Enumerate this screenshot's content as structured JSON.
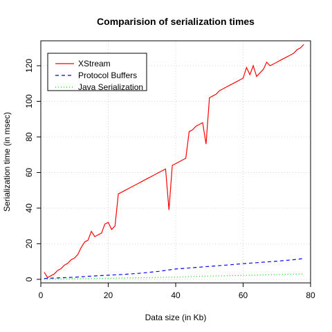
{
  "chart_data": {
    "type": "line",
    "title": "Comparision of serialization times",
    "xlabel": "Data size (in Kb)",
    "ylabel": "Serialization time (in msec)",
    "xlim": [
      0,
      80
    ],
    "ylim": [
      -2,
      134
    ],
    "xticks": [
      0,
      20,
      40,
      60,
      80
    ],
    "yticks": [
      0,
      20,
      40,
      60,
      80,
      100,
      120
    ],
    "grid": true,
    "legend_position": "top-left",
    "series": [
      {
        "name": "XStream",
        "color": "#ff0000",
        "dash": "solid",
        "x": [
          1,
          2,
          3,
          4,
          5,
          6,
          7,
          8,
          9,
          10,
          11,
          12,
          13,
          14,
          15,
          16,
          17,
          18,
          19,
          20,
          21,
          22,
          23,
          24,
          25,
          26,
          27,
          28,
          29,
          30,
          31,
          32,
          33,
          34,
          35,
          36,
          37,
          38,
          39,
          40,
          41,
          42,
          43,
          44,
          45,
          46,
          47,
          48,
          49,
          50,
          51,
          52,
          53,
          54,
          55,
          56,
          57,
          58,
          59,
          60,
          61,
          62,
          63,
          64,
          65,
          66,
          67,
          68,
          69,
          70,
          71,
          72,
          73,
          74,
          75,
          76,
          77,
          78
        ],
        "y": [
          4,
          1,
          2,
          3,
          5,
          6,
          8,
          9,
          11,
          12,
          14,
          18,
          21,
          22,
          27,
          24,
          25,
          26,
          31,
          32,
          28,
          30,
          48,
          49,
          50,
          51,
          52,
          53,
          54,
          55,
          56,
          57,
          58,
          59,
          60,
          61,
          62,
          39,
          64,
          65,
          66,
          67,
          68,
          83,
          84,
          86,
          87,
          88,
          76,
          102,
          103,
          104,
          106,
          107,
          108,
          109,
          110,
          111,
          112,
          113,
          119,
          115,
          120,
          114,
          116,
          118,
          122,
          120,
          121,
          122,
          123,
          124,
          125,
          126,
          127,
          129,
          130,
          132
        ]
      },
      {
        "name": "Protocol Buffers",
        "color": "#0000ff",
        "dash": "dashed",
        "x": [
          1,
          5,
          10,
          15,
          20,
          25,
          30,
          35,
          40,
          45,
          50,
          55,
          60,
          65,
          70,
          75,
          78
        ],
        "y": [
          0.5,
          0.8,
          1.2,
          1.8,
          2.3,
          2.8,
          3.5,
          4.5,
          5.8,
          6.5,
          7.3,
          8.0,
          8.8,
          9.5,
          10.2,
          11.0,
          11.7
        ]
      },
      {
        "name": "Java Serialization",
        "color": "#00dd00",
        "dash": "dotted",
        "x": [
          1,
          10,
          20,
          30,
          40,
          50,
          60,
          70,
          78
        ],
        "y": [
          0.1,
          0.3,
          0.6,
          0.9,
          1.3,
          1.8,
          2.2,
          2.7,
          3.0
        ]
      }
    ]
  }
}
